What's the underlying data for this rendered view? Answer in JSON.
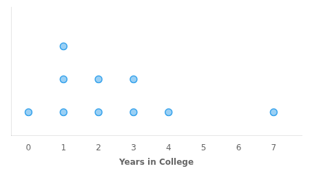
{
  "chart_data": {
    "type": "scatter",
    "x": [
      0,
      1,
      1,
      1,
      2,
      2,
      3,
      3,
      4,
      7
    ],
    "values": [
      1,
      1,
      2,
      3,
      1,
      2,
      1,
      2,
      1,
      1
    ],
    "xlabel": "Years in College",
    "xlim": [
      -0.5,
      7.8
    ],
    "ylim": [
      0.3,
      4.2
    ],
    "xticks": [
      0,
      1,
      2,
      3,
      4,
      5,
      6,
      7
    ],
    "grid": false,
    "tick_labels": "x"
  }
}
